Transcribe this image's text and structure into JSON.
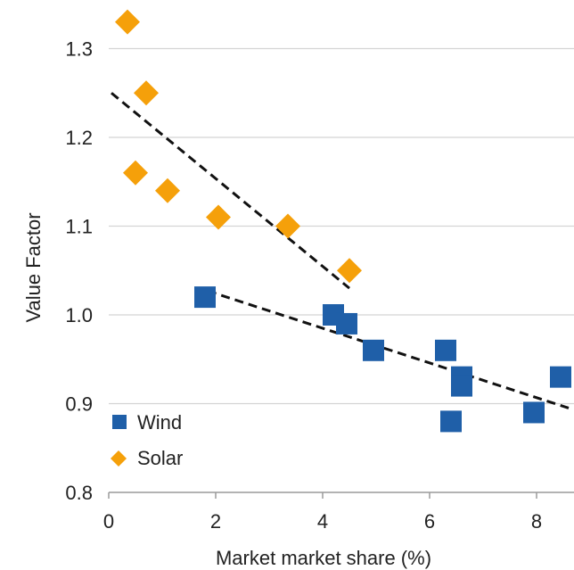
{
  "chart_data": {
    "type": "scatter",
    "xlabel": "Market market share (%)",
    "ylabel": "Value Factor",
    "xlim": [
      0,
      8.7
    ],
    "ylim": [
      0.8,
      1.35
    ],
    "x_ticks": [
      "0",
      "2",
      "4",
      "6",
      "8"
    ],
    "y_ticks": [
      "0.8",
      "0.9",
      "1.0",
      "1.1",
      "1.2",
      "1.3"
    ],
    "grid": "horizontal",
    "legend_position": "bottom-left",
    "series": [
      {
        "name": "Wind",
        "marker": "square",
        "color": "#1f5fa8",
        "points": [
          {
            "x": 1.8,
            "y": 1.02
          },
          {
            "x": 4.2,
            "y": 1.0
          },
          {
            "x": 4.45,
            "y": 0.99
          },
          {
            "x": 4.95,
            "y": 0.96
          },
          {
            "x": 6.3,
            "y": 0.96
          },
          {
            "x": 6.6,
            "y": 0.93
          },
          {
            "x": 6.6,
            "y": 0.92
          },
          {
            "x": 6.4,
            "y": 0.88
          },
          {
            "x": 7.95,
            "y": 0.89
          },
          {
            "x": 8.45,
            "y": 0.93
          }
        ]
      },
      {
        "name": "Solar",
        "marker": "diamond",
        "color": "#f5a00a",
        "points": [
          {
            "x": 0.35,
            "y": 1.33
          },
          {
            "x": 0.7,
            "y": 1.25
          },
          {
            "x": 0.5,
            "y": 1.16
          },
          {
            "x": 1.1,
            "y": 1.14
          },
          {
            "x": 2.05,
            "y": 1.11
          },
          {
            "x": 3.35,
            "y": 1.1
          },
          {
            "x": 4.5,
            "y": 1.05
          }
        ]
      }
    ],
    "trendlines": [
      {
        "series": "Solar",
        "from": {
          "x": 0.05,
          "y": 1.25
        },
        "to": {
          "x": 4.5,
          "y": 1.03
        }
      },
      {
        "series": "Wind",
        "from": {
          "x": 1.85,
          "y": 1.027
        },
        "to": {
          "x": 8.6,
          "y": 0.895
        }
      }
    ]
  }
}
